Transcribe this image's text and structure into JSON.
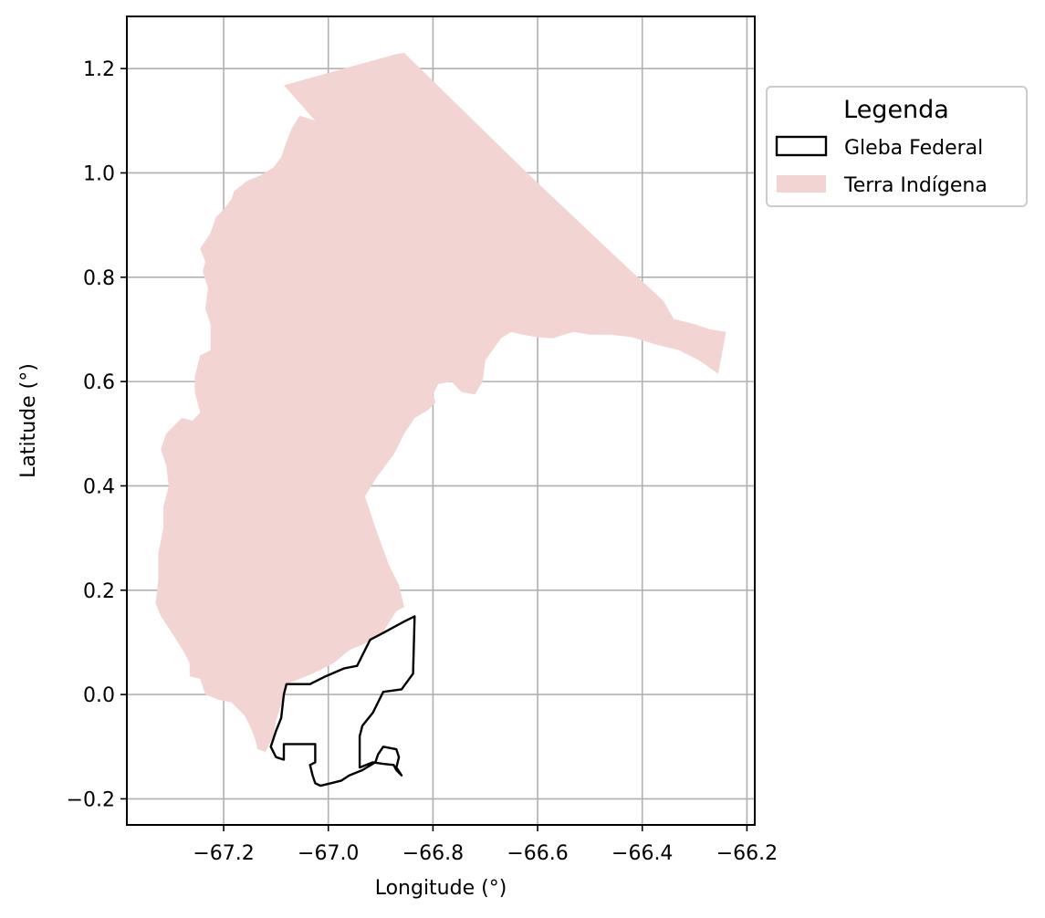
{
  "chart_data": {
    "type": "map",
    "xlabel": "Longitude (°)",
    "ylabel": "Latitude (°)",
    "xlim": [
      -67.385,
      -66.185
    ],
    "ylim": [
      -0.25,
      1.3
    ],
    "xticks": [
      -67.2,
      -67.0,
      -66.8,
      -66.6,
      -66.4,
      -66.2
    ],
    "xtick_labels": [
      "−67.2",
      "−67.0",
      "−66.8",
      "−66.6",
      "−66.4",
      "−66.2"
    ],
    "yticks": [
      -0.2,
      0.0,
      0.2,
      0.4,
      0.6,
      0.8,
      1.0,
      1.2
    ],
    "ytick_labels": [
      "−0.2",
      "0.0",
      "0.2",
      "0.4",
      "0.6",
      "0.8",
      "1.0",
      "1.2"
    ],
    "grid": true,
    "legend": {
      "title": "Legenda",
      "placement": "outside-right-top",
      "entries": [
        {
          "label": "Gleba Federal",
          "style": "outline",
          "color": "#000000"
        },
        {
          "label": "Terra Indígena",
          "style": "fill",
          "color": "#f2d4d3"
        }
      ]
    },
    "layers": [
      {
        "name": "Terra Indígena",
        "fill": "#f2d4d3",
        "coords": [
          [
            -66.855,
            1.23
          ],
          [
            -66.62,
            1.0
          ],
          [
            -66.43,
            0.82
          ],
          [
            -66.36,
            0.755
          ],
          [
            -66.34,
            0.72
          ],
          [
            -66.3,
            0.71
          ],
          [
            -66.27,
            0.7
          ],
          [
            -66.24,
            0.695
          ],
          [
            -66.255,
            0.615
          ],
          [
            -66.29,
            0.64
          ],
          [
            -66.33,
            0.66
          ],
          [
            -66.37,
            0.67
          ],
          [
            -66.42,
            0.685
          ],
          [
            -66.46,
            0.69
          ],
          [
            -66.5,
            0.69
          ],
          [
            -66.53,
            0.695
          ],
          [
            -66.55,
            0.69
          ],
          [
            -66.57,
            0.683
          ],
          [
            -66.6,
            0.685
          ],
          [
            -66.63,
            0.69
          ],
          [
            -66.65,
            0.695
          ],
          [
            -66.67,
            0.683
          ],
          [
            -66.69,
            0.655
          ],
          [
            -66.7,
            0.64
          ],
          [
            -66.705,
            0.6
          ],
          [
            -66.72,
            0.575
          ],
          [
            -66.745,
            0.58
          ],
          [
            -66.765,
            0.6
          ],
          [
            -66.79,
            0.595
          ],
          [
            -66.8,
            0.575
          ],
          [
            -66.795,
            0.56
          ],
          [
            -66.81,
            0.545
          ],
          [
            -66.835,
            0.53
          ],
          [
            -66.855,
            0.5
          ],
          [
            -66.875,
            0.46
          ],
          [
            -66.905,
            0.42
          ],
          [
            -66.93,
            0.38
          ],
          [
            -66.91,
            0.32
          ],
          [
            -66.885,
            0.25
          ],
          [
            -66.865,
            0.21
          ],
          [
            -66.855,
            0.168
          ],
          [
            -66.87,
            0.16
          ],
          [
            -66.895,
            0.12
          ],
          [
            -66.925,
            0.1
          ],
          [
            -66.96,
            0.085
          ],
          [
            -66.99,
            0.06
          ],
          [
            -67.03,
            0.04
          ],
          [
            -67.08,
            0.02
          ],
          [
            -67.09,
            -0.02
          ],
          [
            -67.1,
            -0.05
          ],
          [
            -67.105,
            -0.08
          ],
          [
            -67.12,
            -0.11
          ],
          [
            -67.135,
            -0.105
          ],
          [
            -67.14,
            -0.085
          ],
          [
            -67.15,
            -0.06
          ],
          [
            -67.16,
            -0.04
          ],
          [
            -67.185,
            -0.015
          ],
          [
            -67.21,
            -0.01
          ],
          [
            -67.235,
            0.0
          ],
          [
            -67.245,
            0.03
          ],
          [
            -67.265,
            0.035
          ],
          [
            -67.265,
            0.06
          ],
          [
            -67.275,
            0.08
          ],
          [
            -67.3,
            0.12
          ],
          [
            -67.32,
            0.15
          ],
          [
            -67.33,
            0.175
          ],
          [
            -67.325,
            0.22
          ],
          [
            -67.325,
            0.27
          ],
          [
            -67.315,
            0.32
          ],
          [
            -67.315,
            0.36
          ],
          [
            -67.305,
            0.4
          ],
          [
            -67.31,
            0.44
          ],
          [
            -67.32,
            0.47
          ],
          [
            -67.31,
            0.5
          ],
          [
            -67.28,
            0.53
          ],
          [
            -67.26,
            0.525
          ],
          [
            -67.245,
            0.54
          ],
          [
            -67.255,
            0.58
          ],
          [
            -67.255,
            0.61
          ],
          [
            -67.245,
            0.65
          ],
          [
            -67.225,
            0.66
          ],
          [
            -67.225,
            0.71
          ],
          [
            -67.235,
            0.74
          ],
          [
            -67.23,
            0.78
          ],
          [
            -67.24,
            0.81
          ],
          [
            -67.235,
            0.83
          ],
          [
            -67.245,
            0.855
          ],
          [
            -67.225,
            0.885
          ],
          [
            -67.215,
            0.915
          ],
          [
            -67.2,
            0.93
          ],
          [
            -67.185,
            0.95
          ],
          [
            -67.18,
            0.965
          ],
          [
            -67.155,
            0.985
          ],
          [
            -67.13,
            0.995
          ],
          [
            -67.105,
            1.01
          ],
          [
            -67.09,
            1.03
          ],
          [
            -67.08,
            1.06
          ],
          [
            -67.07,
            1.085
          ],
          [
            -67.055,
            1.11
          ],
          [
            -67.025,
            1.1
          ],
          [
            -67.085,
            1.168
          ],
          [
            -66.87,
            1.228
          ]
        ]
      },
      {
        "name": "Gleba Federal",
        "stroke": "#000000",
        "coords": [
          [
            -66.835,
            0.15
          ],
          [
            -66.838,
            0.04
          ],
          [
            -66.86,
            0.01
          ],
          [
            -66.895,
            0.005
          ],
          [
            -66.915,
            -0.035
          ],
          [
            -66.935,
            -0.06
          ],
          [
            -66.94,
            -0.08
          ],
          [
            -66.94,
            -0.14
          ],
          [
            -66.915,
            -0.13
          ],
          [
            -66.895,
            -0.133
          ],
          [
            -66.875,
            -0.135
          ],
          [
            -66.87,
            -0.145
          ],
          [
            -66.86,
            -0.155
          ],
          [
            -66.87,
            -0.14
          ],
          [
            -66.865,
            -0.12
          ],
          [
            -66.87,
            -0.105
          ],
          [
            -66.895,
            -0.1
          ],
          [
            -66.905,
            -0.115
          ],
          [
            -66.91,
            -0.13
          ],
          [
            -66.935,
            -0.145
          ],
          [
            -66.96,
            -0.155
          ],
          [
            -66.975,
            -0.165
          ],
          [
            -66.995,
            -0.17
          ],
          [
            -67.015,
            -0.175
          ],
          [
            -67.025,
            -0.17
          ],
          [
            -67.03,
            -0.155
          ],
          [
            -67.035,
            -0.135
          ],
          [
            -67.025,
            -0.13
          ],
          [
            -67.025,
            -0.095
          ],
          [
            -67.085,
            -0.095
          ],
          [
            -67.085,
            -0.125
          ],
          [
            -67.1,
            -0.12
          ],
          [
            -67.11,
            -0.1
          ],
          [
            -67.1,
            -0.07
          ],
          [
            -67.09,
            -0.045
          ],
          [
            -67.085,
            0.0
          ],
          [
            -67.08,
            0.02
          ],
          [
            -67.06,
            0.02
          ],
          [
            -67.035,
            0.02
          ],
          [
            -67.005,
            0.035
          ],
          [
            -66.97,
            0.05
          ],
          [
            -66.945,
            0.055
          ],
          [
            -66.935,
            0.075
          ],
          [
            -66.92,
            0.105
          ],
          [
            -66.895,
            0.118
          ],
          [
            -66.855,
            0.14
          ],
          [
            -66.835,
            0.15
          ]
        ]
      }
    ]
  }
}
